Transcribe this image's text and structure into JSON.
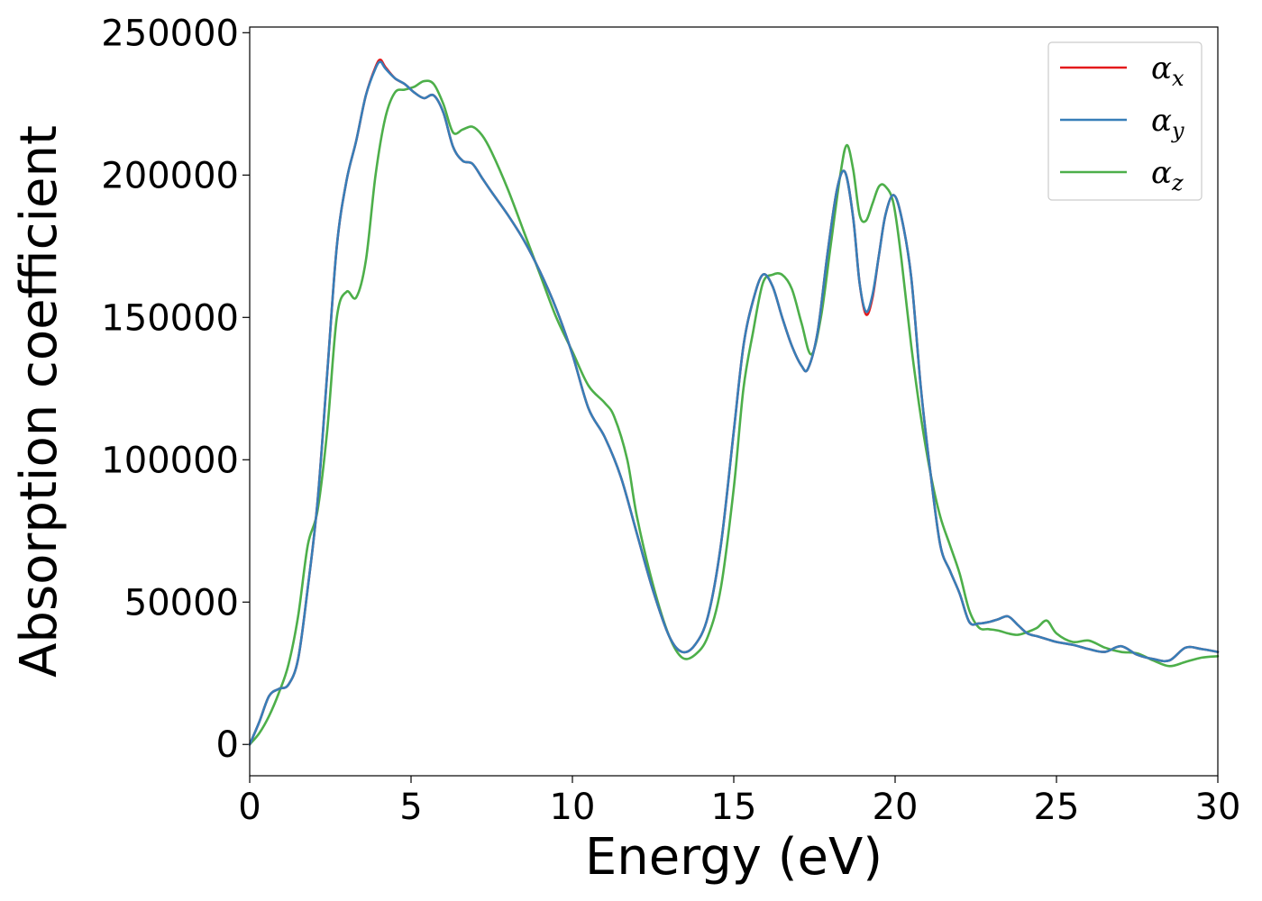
{
  "chart_data": {
    "type": "line",
    "title": "",
    "xlabel": "Energy (eV)",
    "ylabel": "Absorption coefficient",
    "xlim": [
      0,
      30
    ],
    "ylim": [
      -11000,
      252000
    ],
    "xticks": [
      0,
      5,
      10,
      15,
      20,
      25,
      30
    ],
    "yticks": [
      0,
      50000,
      100000,
      150000,
      200000,
      250000
    ],
    "grid": false,
    "legend_position": "top-right",
    "series": [
      {
        "name": "α",
        "subscript": "x",
        "color": "#e41a1c",
        "x": [
          0,
          0.3,
          0.6,
          0.9,
          1.2,
          1.5,
          1.8,
          2.1,
          2.4,
          2.7,
          3.0,
          3.3,
          3.6,
          3.9,
          4.05,
          4.2,
          4.5,
          4.8,
          5.1,
          5.4,
          5.7,
          6.0,
          6.3,
          6.6,
          6.9,
          7.2,
          7.5,
          8.0,
          8.5,
          9.0,
          9.5,
          10.0,
          10.5,
          11.0,
          11.5,
          12.0,
          12.5,
          13.0,
          13.4,
          13.8,
          14.2,
          14.6,
          15.0,
          15.3,
          15.6,
          15.9,
          16.2,
          16.5,
          16.8,
          17.1,
          17.3,
          17.6,
          17.9,
          18.2,
          18.45,
          18.7,
          18.9,
          19.1,
          19.3,
          19.5,
          19.7,
          19.95,
          20.2,
          20.5,
          20.8,
          21.1,
          21.4,
          21.7,
          22.0,
          22.3,
          22.6,
          22.9,
          23.2,
          23.5,
          23.8,
          24.1,
          24.4,
          24.7,
          25.0,
          25.5,
          26.0,
          26.5,
          27.0,
          27.5,
          28.0,
          28.5,
          29.0,
          29.5,
          30.0
        ],
        "y": [
          0,
          8000,
          17000,
          19500,
          21000,
          30000,
          55000,
          85000,
          130000,
          175000,
          198000,
          212000,
          228000,
          238000,
          240500,
          238000,
          234000,
          232000,
          229000,
          227000,
          228000,
          222000,
          210000,
          205000,
          204000,
          199000,
          194000,
          186000,
          177000,
          166000,
          153000,
          137000,
          118000,
          108000,
          94000,
          74000,
          54000,
          38000,
          32500,
          35000,
          45000,
          70000,
          110000,
          140000,
          156000,
          165000,
          161000,
          150000,
          140000,
          133000,
          132000,
          145000,
          172000,
          195000,
          201000,
          185000,
          162000,
          151000,
          157000,
          172000,
          186000,
          193000,
          185000,
          164000,
          125000,
          95000,
          70000,
          61000,
          53000,
          43000,
          42500,
          43000,
          44000,
          45000,
          42000,
          39000,
          38000,
          37000,
          36000,
          35000,
          33500,
          32500,
          34500,
          31500,
          30000,
          29500,
          34000,
          33500,
          32500
        ]
      },
      {
        "name": "α",
        "subscript": "y",
        "color": "#377eb8",
        "x": [
          0,
          0.3,
          0.6,
          0.9,
          1.2,
          1.5,
          1.8,
          2.1,
          2.4,
          2.7,
          3.0,
          3.3,
          3.6,
          3.9,
          4.05,
          4.2,
          4.5,
          4.8,
          5.1,
          5.4,
          5.7,
          6.0,
          6.3,
          6.6,
          6.9,
          7.2,
          7.5,
          8.0,
          8.5,
          9.0,
          9.5,
          10.0,
          10.5,
          11.0,
          11.5,
          12.0,
          12.5,
          13.0,
          13.4,
          13.8,
          14.2,
          14.6,
          15.0,
          15.3,
          15.6,
          15.9,
          16.2,
          16.5,
          16.8,
          17.1,
          17.3,
          17.6,
          17.9,
          18.2,
          18.45,
          18.7,
          18.9,
          19.1,
          19.3,
          19.5,
          19.7,
          19.95,
          20.2,
          20.5,
          20.8,
          21.1,
          21.4,
          21.7,
          22.0,
          22.3,
          22.6,
          22.9,
          23.2,
          23.5,
          23.8,
          24.1,
          24.4,
          24.7,
          25.0,
          25.5,
          26.0,
          26.5,
          27.0,
          27.5,
          28.0,
          28.5,
          29.0,
          29.5,
          30.0
        ],
        "y": [
          0,
          8000,
          17000,
          19500,
          21000,
          30000,
          55000,
          85000,
          130000,
          175000,
          198000,
          212000,
          228000,
          237500,
          239800,
          237500,
          234000,
          232000,
          229000,
          227000,
          228000,
          222000,
          210000,
          205000,
          204000,
          199000,
          194000,
          186000,
          177000,
          166000,
          153000,
          137000,
          118000,
          108000,
          94000,
          74000,
          54000,
          38000,
          32500,
          35000,
          45000,
          70000,
          110000,
          140000,
          156000,
          165000,
          161000,
          150000,
          140000,
          133000,
          132000,
          145000,
          172000,
          195000,
          201000,
          185000,
          162000,
          152000,
          158000,
          172000,
          186000,
          193000,
          185000,
          164000,
          125000,
          95000,
          70000,
          61000,
          53000,
          43000,
          42500,
          43000,
          44000,
          45000,
          42000,
          39000,
          38000,
          37000,
          36000,
          35000,
          33500,
          32500,
          34500,
          31500,
          30000,
          29500,
          34000,
          33500,
          32500
        ]
      },
      {
        "name": "α",
        "subscript": "z",
        "color": "#4daf4a",
        "x": [
          0,
          0.3,
          0.6,
          0.9,
          1.2,
          1.5,
          1.8,
          2.1,
          2.4,
          2.7,
          3.0,
          3.3,
          3.6,
          3.9,
          4.2,
          4.5,
          4.8,
          5.1,
          5.4,
          5.7,
          6.0,
          6.3,
          6.6,
          6.9,
          7.2,
          7.5,
          8.0,
          8.5,
          9.0,
          9.5,
          10.0,
          10.5,
          11.0,
          11.3,
          11.7,
          12.0,
          12.5,
          13.0,
          13.4,
          13.8,
          14.2,
          14.6,
          15.0,
          15.3,
          15.6,
          15.9,
          16.2,
          16.5,
          16.8,
          17.1,
          17.4,
          17.7,
          18.0,
          18.3,
          18.5,
          18.7,
          18.9,
          19.1,
          19.3,
          19.5,
          19.7,
          19.95,
          20.2,
          20.5,
          20.8,
          21.1,
          21.4,
          21.7,
          22.0,
          22.3,
          22.6,
          22.9,
          23.2,
          23.5,
          23.8,
          24.1,
          24.4,
          24.7,
          25.0,
          25.5,
          26.0,
          26.5,
          27.0,
          27.5,
          28.0,
          28.5,
          29.0,
          29.5,
          30.0
        ],
        "y": [
          0,
          4000,
          10000,
          18000,
          28000,
          45000,
          70000,
          82000,
          110000,
          150000,
          159000,
          157000,
          170000,
          200000,
          220000,
          229000,
          230000,
          231000,
          233000,
          232000,
          225000,
          215000,
          216000,
          217000,
          214000,
          208000,
          195000,
          180000,
          165000,
          150000,
          138000,
          126000,
          120000,
          115000,
          100000,
          80000,
          56000,
          38000,
          30500,
          31500,
          38000,
          55000,
          90000,
          125000,
          145000,
          162000,
          165000,
          165000,
          160000,
          148000,
          137000,
          150000,
          175000,
          200000,
          210500,
          202000,
          186000,
          184000,
          190000,
          196000,
          196000,
          190000,
          170000,
          140000,
          115000,
          95000,
          80000,
          70000,
          60000,
          47000,
          41000,
          40500,
          40000,
          39000,
          38500,
          39500,
          41000,
          43500,
          39000,
          36000,
          36500,
          34000,
          32500,
          32000,
          29500,
          27500,
          29000,
          30500,
          31000
        ]
      }
    ]
  }
}
